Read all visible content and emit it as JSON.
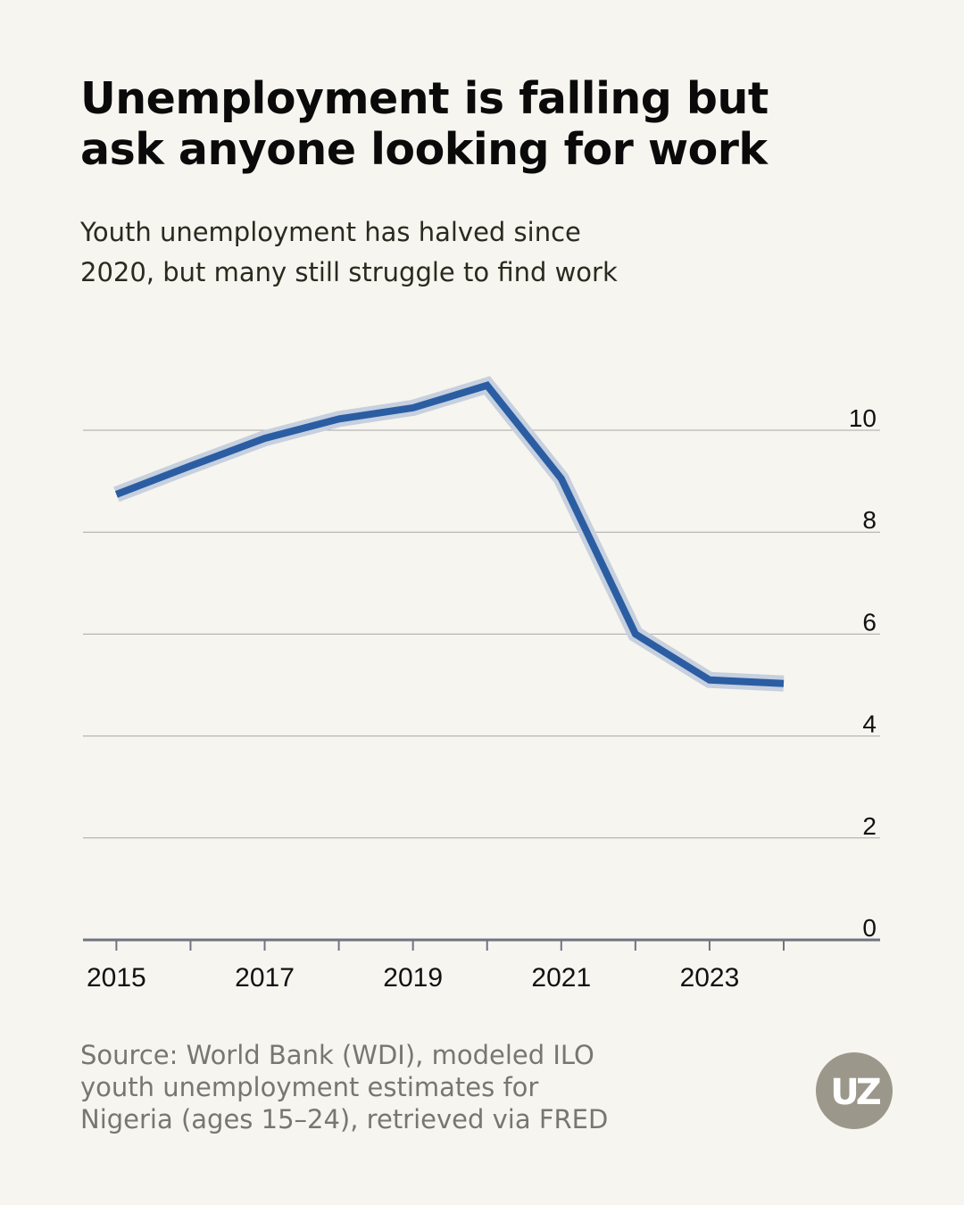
{
  "title_lines": [
    "Unemployment is falling but",
    "ask anyone looking for work"
  ],
  "subtitle_lines": [
    "Youth unemployment has halved since",
    "2020, but many still struggle to find work"
  ],
  "source_lines": [
    "Source: World Bank (WDI), modeled ILO",
    "youth unemployment estimates for",
    "Nigeria (ages 15–24), retrieved via FRED"
  ],
  "logo_text": "UZ",
  "colors": {
    "background": "#f6f5f0",
    "line": "#2b5da3",
    "line_halo": "#c6d0de",
    "grid": "#a8a8a4",
    "axis": "#6f7480",
    "logo": "#9c978b"
  },
  "chart_data": {
    "type": "line",
    "title": "Unemployment is falling but ask anyone looking for work",
    "subtitle": "Youth unemployment has halved since 2020, but many still struggle to find work",
    "xlabel": "",
    "ylabel": "",
    "x": [
      2015,
      2016,
      2017,
      2018,
      2019,
      2020,
      2021,
      2022,
      2023,
      2024
    ],
    "series": [
      {
        "name": "Youth unemployment rate, Nigeria (ages 15–24)",
        "values": [
          8.74,
          9.3,
          9.84,
          10.22,
          10.44,
          10.88,
          9.05,
          6.0,
          5.1,
          5.03
        ]
      }
    ],
    "xlim": [
      2014.55,
      2025.3
    ],
    "ylim": [
      0,
      11.5
    ],
    "y_ticks": [
      0,
      2,
      4,
      6,
      8,
      10
    ],
    "y_tick_labels": [
      "0",
      "2",
      "4",
      "6",
      "8",
      "10"
    ],
    "x_ticks": [
      2015,
      2016,
      2017,
      2018,
      2019,
      2020,
      2021,
      2022,
      2023,
      2024
    ],
    "x_tick_labels": [
      "2015",
      "2017",
      "2019",
      "2021",
      "2023"
    ],
    "x_label_years": [
      2015,
      2017,
      2019,
      2021,
      2023
    ],
    "grid": true,
    "y_axis_position": "right",
    "legend": "none"
  }
}
